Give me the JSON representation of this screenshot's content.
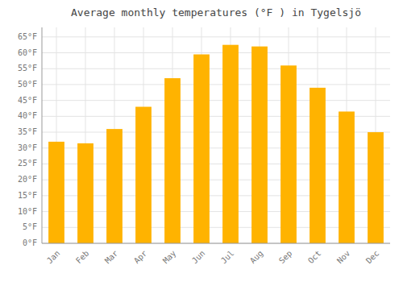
{
  "chart_data": {
    "type": "bar",
    "title": "Average monthly temperatures (°F ) in Tygelsjö",
    "categories": [
      "Jan",
      "Feb",
      "Mar",
      "Apr",
      "May",
      "Jun",
      "Jul",
      "Aug",
      "Sep",
      "Oct",
      "Nov",
      "Dec"
    ],
    "values": [
      32,
      31.5,
      36,
      43,
      52,
      59.5,
      62.5,
      62,
      56,
      49,
      41.5,
      35
    ],
    "color": "#FFB300",
    "ylim": [
      0,
      68
    ],
    "yticks": [
      {
        "value": 0,
        "label": "0°F"
      },
      {
        "value": 5,
        "label": "5°F"
      },
      {
        "value": 10,
        "label": "10°F"
      },
      {
        "value": 15,
        "label": "15°F"
      },
      {
        "value": 20,
        "label": "20°F"
      },
      {
        "value": 25,
        "label": "25°F"
      },
      {
        "value": 30,
        "label": "30°F"
      },
      {
        "value": 35,
        "label": "35°F"
      },
      {
        "value": 40,
        "label": "40°F"
      },
      {
        "value": 45,
        "label": "45°F"
      },
      {
        "value": 50,
        "label": "50°F"
      },
      {
        "value": 55,
        "label": "55°F"
      },
      {
        "value": 60,
        "label": "60°F"
      },
      {
        "value": 65,
        "label": "65°F"
      }
    ],
    "grid": true
  }
}
